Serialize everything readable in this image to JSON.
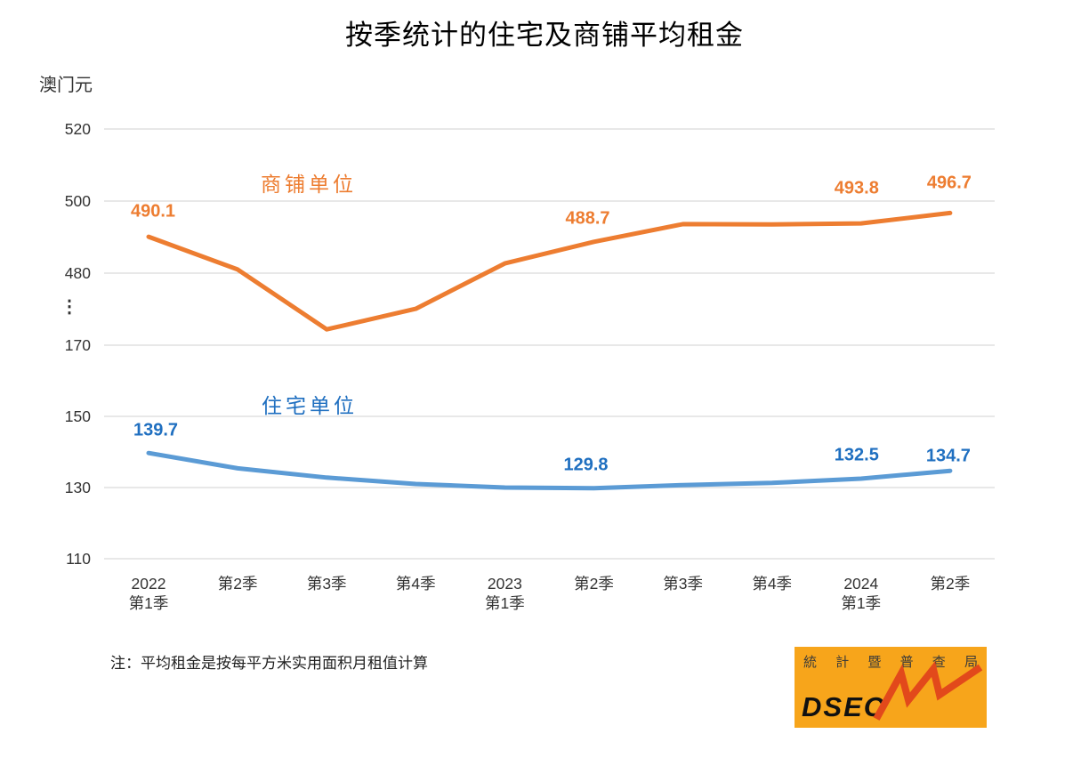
{
  "title": "按季统计的住宅及商铺平均租金",
  "y_axis": {
    "unit": "澳门元",
    "ticks_upper": [
      "520",
      "500",
      "480"
    ],
    "ticks_lower": [
      "170",
      "150",
      "130",
      "110"
    ],
    "break_marker": "⋮"
  },
  "note": "注：平均租金是按每平方米实用面积月租值计算",
  "chart_data": {
    "type": "line",
    "title": "按季统计的住宅及商铺平均租金",
    "ylabel": "澳门元",
    "grid": true,
    "grid_color": "#D9D9D9",
    "axis_break_between": [
      170,
      480
    ],
    "upper_ticks": [
      520,
      500,
      480
    ],
    "lower_ticks": [
      170,
      150,
      130,
      110
    ],
    "x_categories": [
      "2022 第1季",
      "第2季",
      "第3季",
      "第4季",
      "2023 第1季",
      "第2季",
      "第3季",
      "第4季",
      "2024 第1季",
      "第2季"
    ],
    "x_tick_lines": [
      [
        "2022",
        "第1季"
      ],
      [
        "第2季"
      ],
      [
        "第3季"
      ],
      [
        "第4季"
      ],
      [
        "2023",
        "第1季"
      ],
      [
        "第2季"
      ],
      [
        "第3季"
      ],
      [
        "第4季"
      ],
      [
        "2024",
        "第1季"
      ],
      [
        "第2季"
      ]
    ],
    "series": [
      {
        "name": "商铺单位",
        "color": "#ED7D31",
        "label_color": "#ED7D31",
        "scale": "upper",
        "values": [
          490.1,
          481.0,
          464.4,
          470.1,
          482.7,
          488.7,
          493.6,
          493.5,
          493.8,
          496.7
        ],
        "labeled_points": [
          {
            "index": 0,
            "text": "490.1"
          },
          {
            "index": 5,
            "text": "488.7"
          },
          {
            "index": 8,
            "text": "493.8"
          },
          {
            "index": 9,
            "text": "496.7"
          }
        ]
      },
      {
        "name": "住宅单位",
        "color": "#5B9BD5",
        "label_color": "#1F6FC0",
        "scale": "lower",
        "values": [
          139.7,
          135.4,
          132.8,
          131.0,
          130.0,
          129.8,
          130.7,
          131.3,
          132.5,
          134.7
        ],
        "labeled_points": [
          {
            "index": 0,
            "text": "139.7"
          },
          {
            "index": 5,
            "text": "129.8"
          },
          {
            "index": 8,
            "text": "132.5"
          },
          {
            "index": 9,
            "text": "134.7"
          }
        ]
      }
    ]
  },
  "logo": {
    "agency_name": "統計暨普查局",
    "acronym": "DSEC",
    "bg_color": "#F7A51B",
    "zigzag_color": "#E2491B",
    "text_color": "#3A3A3A"
  }
}
